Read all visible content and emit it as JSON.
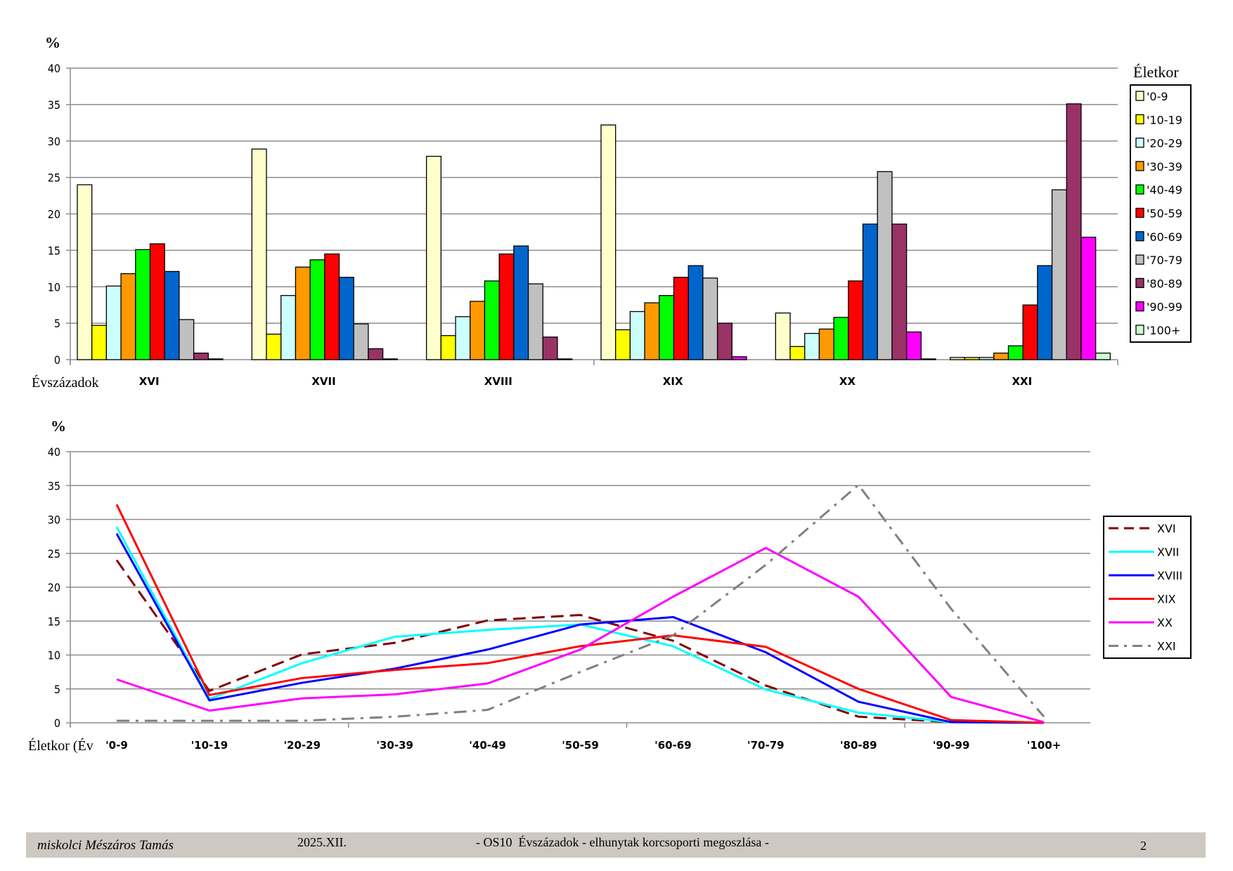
{
  "chart_data": [
    {
      "type": "bar",
      "ylabel": "%",
      "xlabel": "Évszázadok",
      "ylim": [
        0,
        40
      ],
      "yticks": [
        0,
        5,
        10,
        15,
        20,
        25,
        30,
        35,
        40
      ],
      "grid": true,
      "legend_title": "Életkor",
      "legend_position": "right",
      "categories": [
        "XVI",
        "XVII",
        "XVIII",
        "XIX",
        "XX",
        "XXI"
      ],
      "series": [
        {
          "name": "'0-9",
          "color": "#FFFFCC",
          "values": [
            24.0,
            28.9,
            27.9,
            32.2,
            6.4,
            0.3
          ]
        },
        {
          "name": "'10-19",
          "color": "#FFFF00",
          "values": [
            4.7,
            3.5,
            3.3,
            4.1,
            1.8,
            0.3
          ]
        },
        {
          "name": "'20-29",
          "color": "#CCFFFF",
          "values": [
            10.1,
            8.8,
            5.9,
            6.6,
            3.6,
            0.3
          ]
        },
        {
          "name": "'30-39",
          "color": "#FF9900",
          "values": [
            11.8,
            12.7,
            8.0,
            7.8,
            4.2,
            0.9
          ]
        },
        {
          "name": "'40-49",
          "color": "#00FF00",
          "values": [
            15.1,
            13.7,
            10.8,
            8.8,
            5.8,
            1.9
          ]
        },
        {
          "name": "'50-59",
          "color": "#FF0000",
          "values": [
            15.9,
            14.5,
            14.5,
            11.3,
            10.8,
            7.5
          ]
        },
        {
          "name": "'60-69",
          "color": "#0066CC",
          "values": [
            12.1,
            11.3,
            15.6,
            12.9,
            18.6,
            12.9
          ]
        },
        {
          "name": "'70-79",
          "color": "#C0C0C0",
          "values": [
            5.5,
            4.9,
            10.4,
            11.2,
            25.8,
            23.3
          ]
        },
        {
          "name": "'80-89",
          "color": "#993366",
          "values": [
            0.9,
            1.5,
            3.1,
            5.0,
            18.6,
            35.1
          ]
        },
        {
          "name": "'90-99",
          "color": "#FF00FF",
          "values": [
            0.1,
            0.1,
            0.1,
            0.4,
            3.8,
            16.8
          ]
        },
        {
          "name": "'100+",
          "color": "#CCFFCC",
          "values": [
            0,
            0,
            0,
            0,
            0.1,
            0.9
          ]
        }
      ]
    },
    {
      "type": "line",
      "ylabel": "%",
      "xlabel": "Életkor (Év",
      "ylim": [
        0,
        40
      ],
      "yticks": [
        0,
        5,
        10,
        15,
        20,
        25,
        30,
        35,
        40
      ],
      "grid": true,
      "legend_position": "right",
      "categories": [
        "'0-9",
        "'10-19",
        "'20-29",
        "'30-39",
        "'40-49",
        "'50-59",
        "'60-69",
        "'70-79",
        "'80-89",
        "'90-99",
        "'100+"
      ],
      "series": [
        {
          "name": "XVI",
          "color": "#800000",
          "dash": "dashed",
          "values": [
            24.0,
            4.7,
            10.1,
            11.8,
            15.1,
            15.9,
            12.1,
            5.5,
            0.9,
            0.1,
            0
          ]
        },
        {
          "name": "XVII",
          "color": "#00FFFF",
          "dash": "solid",
          "values": [
            28.9,
            3.5,
            8.8,
            12.7,
            13.7,
            14.5,
            11.3,
            4.9,
            1.5,
            0.1,
            0
          ]
        },
        {
          "name": "XVIII",
          "color": "#0000FF",
          "dash": "solid",
          "values": [
            27.9,
            3.3,
            5.9,
            8.0,
            10.8,
            14.5,
            15.6,
            10.4,
            3.1,
            0.1,
            0
          ]
        },
        {
          "name": "XIX",
          "color": "#FF0000",
          "dash": "solid",
          "values": [
            32.2,
            4.1,
            6.6,
            7.8,
            8.8,
            11.3,
            12.9,
            11.2,
            5.0,
            0.4,
            0
          ]
        },
        {
          "name": "XX",
          "color": "#FF00FF",
          "dash": "solid",
          "values": [
            6.4,
            1.8,
            3.6,
            4.2,
            5.8,
            10.8,
            18.6,
            25.8,
            18.6,
            3.8,
            0.1
          ]
        },
        {
          "name": "XXI",
          "color": "#808080",
          "dash": "dashdot",
          "values": [
            0.3,
            0.3,
            0.3,
            0.9,
            1.9,
            7.5,
            12.9,
            23.3,
            35.1,
            16.8,
            0.9
          ]
        }
      ]
    }
  ],
  "footer": {
    "author": "miskolci Mészáros Tamás",
    "date": "2025.XII.",
    "title": "- OS10  Évszázadok - elhunytak korcsoporti megoszlása -",
    "page": "2"
  }
}
